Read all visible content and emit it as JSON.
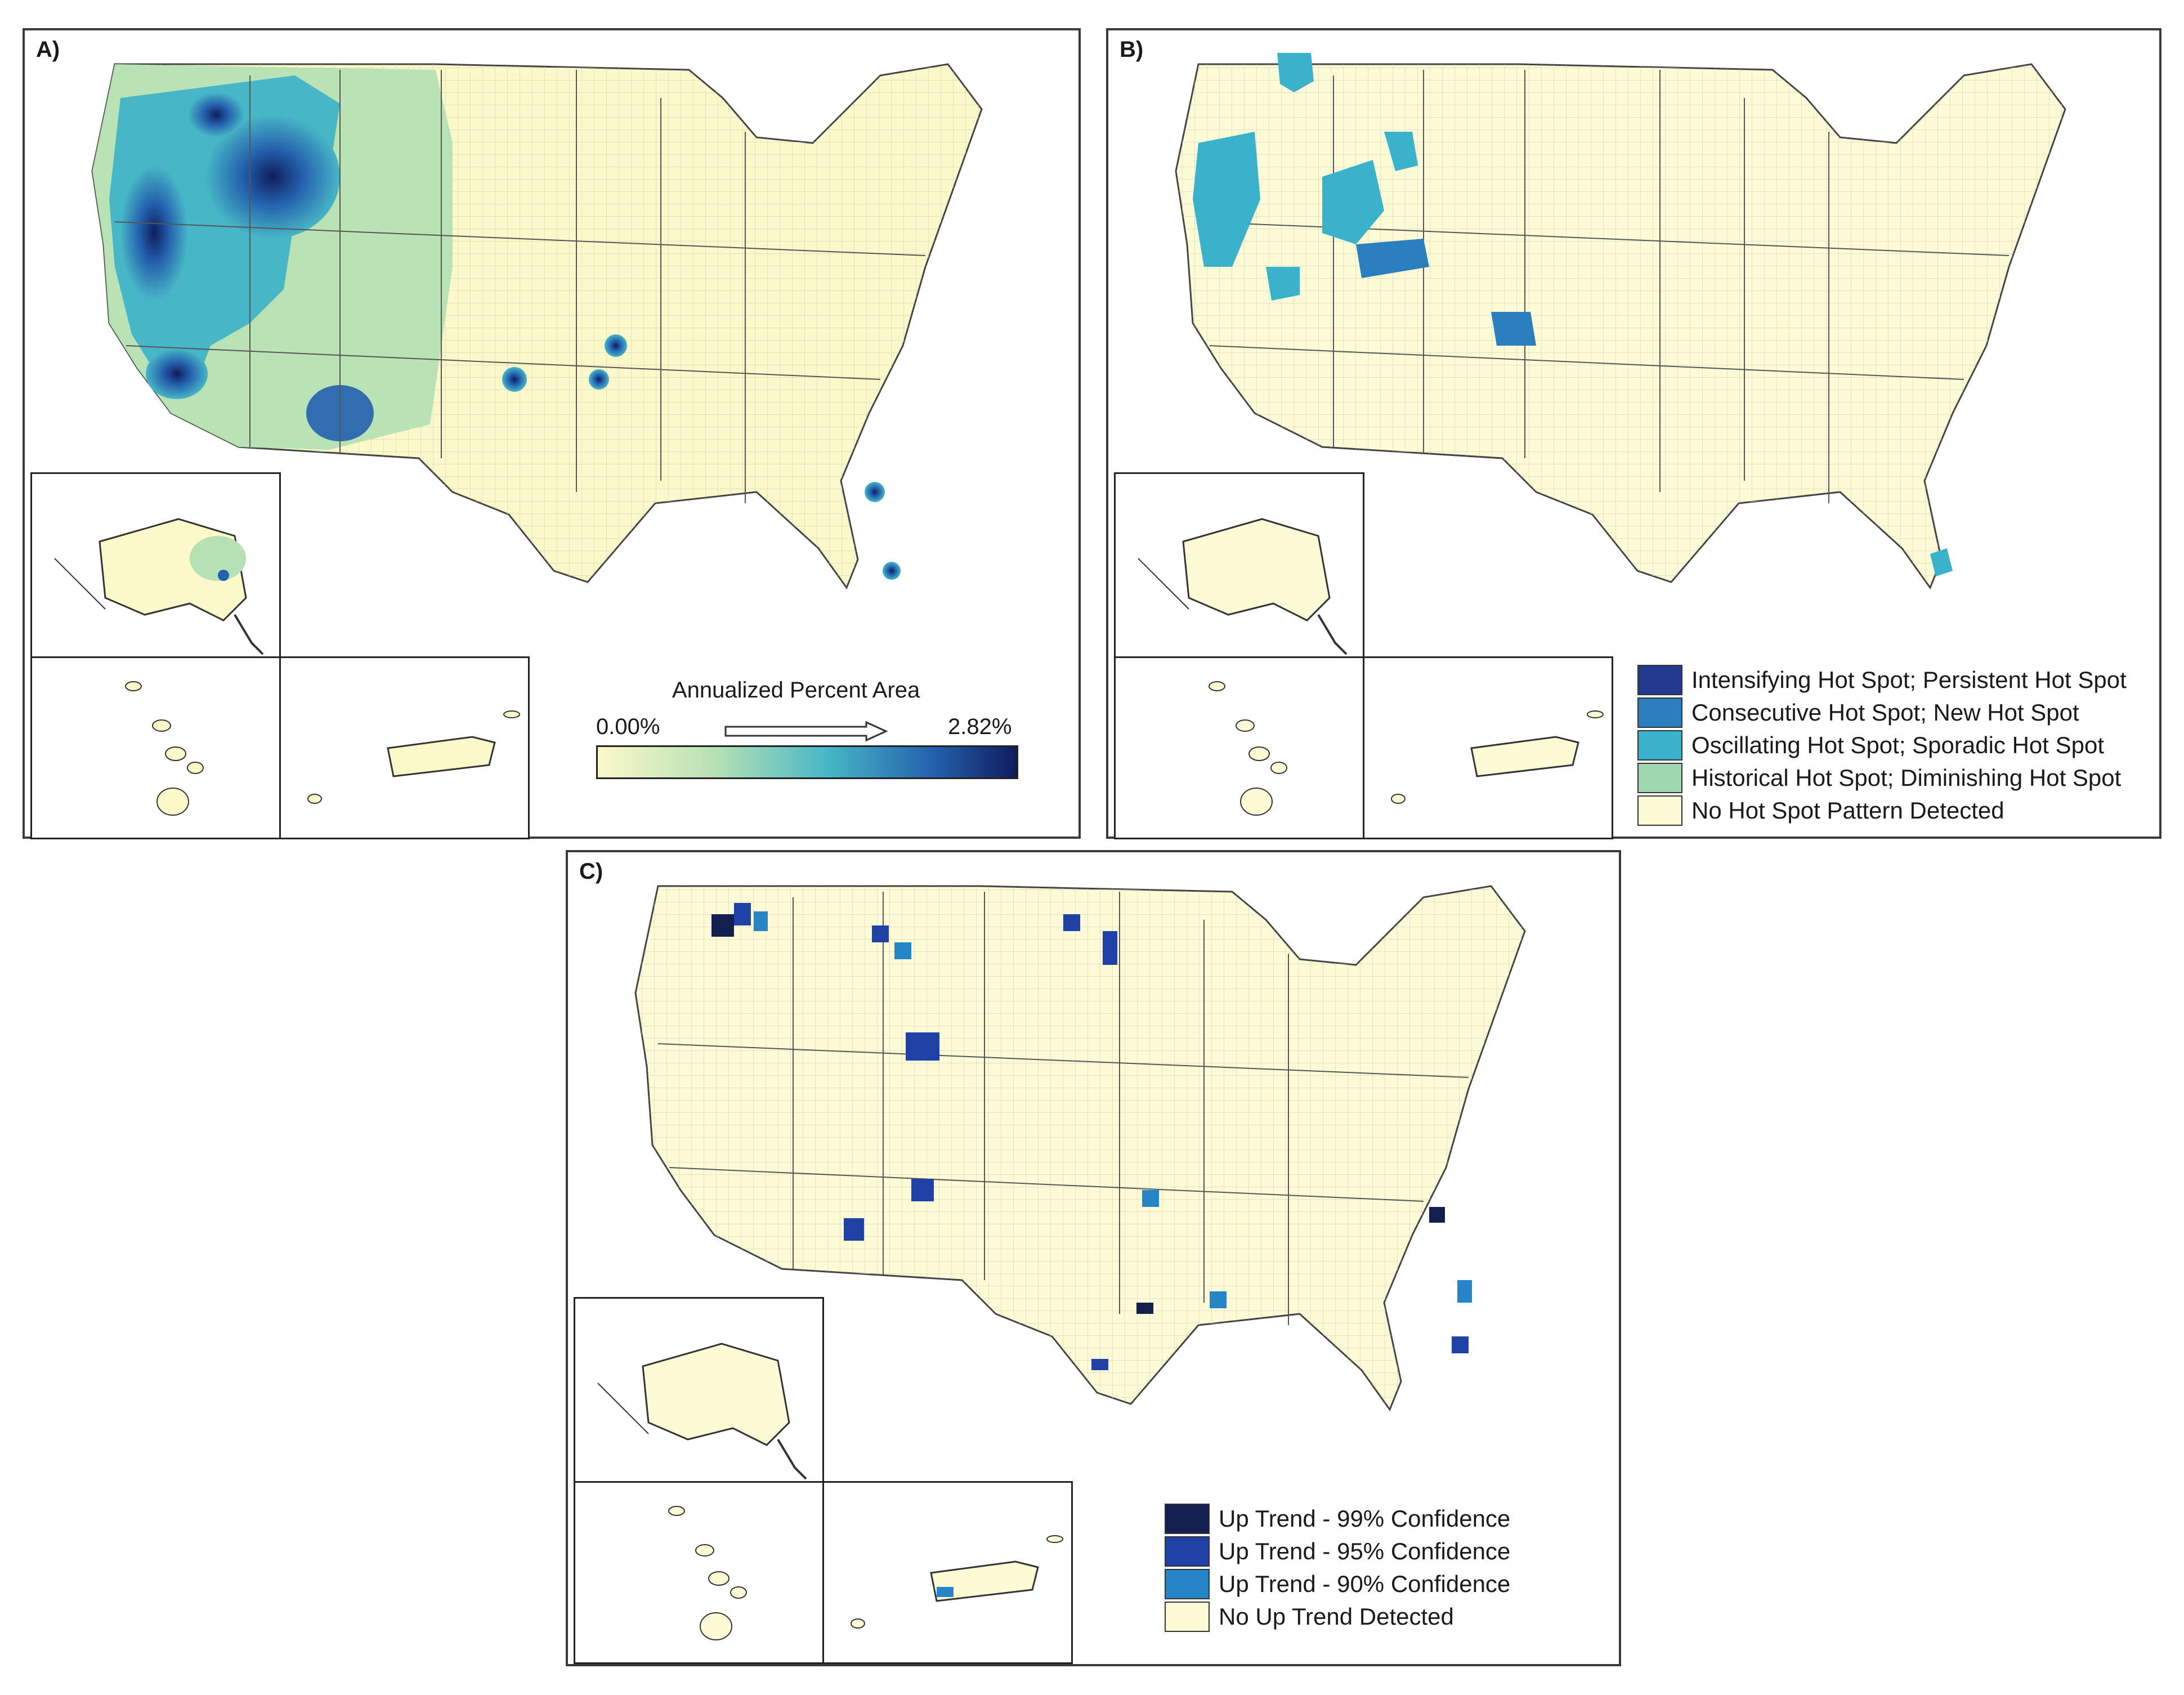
{
  "panels": {
    "a": {
      "label": "A)",
      "legend_title": "Annualized Percent Area",
      "legend_min": "0.00%",
      "legend_max": "2.82%",
      "colors": [
        "#fbf8c9",
        "#b6e1b4",
        "#47b6c6",
        "#2461ae",
        "#0f1d5c"
      ]
    },
    "b": {
      "label": "B)",
      "legend": [
        {
          "label": "Intensifying Hot Spot; Persistent Hot Spot",
          "color": "#243a8f"
        },
        {
          "label": "Consecutive Hot Spot; New Hot Spot",
          "color": "#2b7fbf"
        },
        {
          "label": "Oscillating Hot Spot; Sporadic Hot Spot",
          "color": "#3bb2cc"
        },
        {
          "label": "Historical Hot Spot; Diminishing Hot Spot",
          "color": "#9fd8b0"
        },
        {
          "label": "No Hot Spot Pattern Detected",
          "color": "#fdfad6"
        }
      ]
    },
    "c": {
      "label": "C)",
      "legend": [
        {
          "label": "Up Trend - 99% Confidence",
          "color": "#13204f"
        },
        {
          "label": "Up Trend - 95% Confidence",
          "color": "#2041a6"
        },
        {
          "label": "Up Trend - 90% Confidence",
          "color": "#2585c7"
        },
        {
          "label": "No Up Trend Detected",
          "color": "#fdfad6"
        }
      ]
    }
  }
}
